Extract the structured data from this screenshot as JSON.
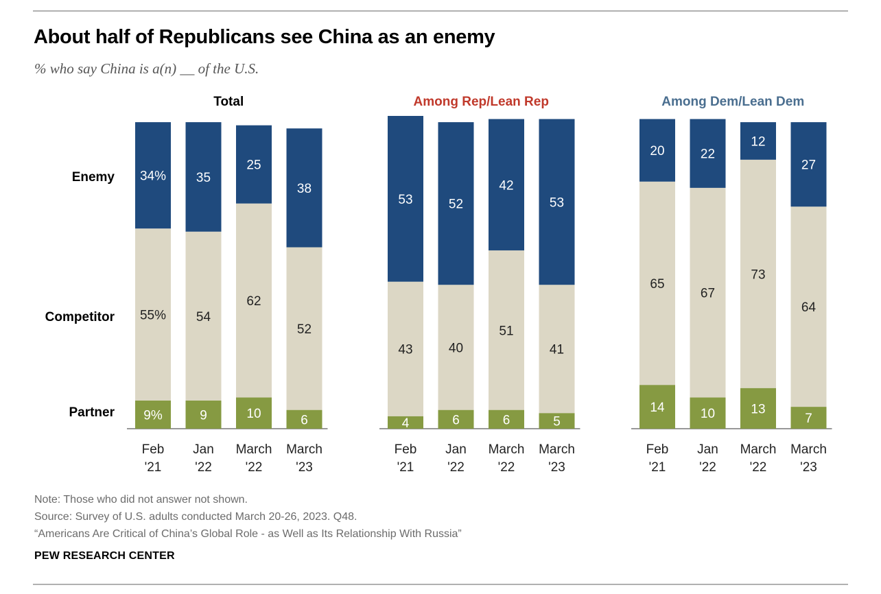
{
  "header": {
    "title": "About half of Republicans see China as an enemy",
    "subtitle": "% who say China is a(n) __ of the U.S."
  },
  "footer": {
    "note": "Note: Those who did not answer not shown.",
    "source": "Source: Survey of U.S. adults conducted March 20-26, 2023. Q48.",
    "report": "“Americans Are Critical of China’s Global Role - as Well as Its Relationship With Russia”",
    "brand": "PEW RESEARCH CENTER"
  },
  "colors": {
    "enemy": "#1f4a7d",
    "competitor": "#dcd7c5",
    "partner": "#869a42",
    "rep_heading": "#c0392b",
    "dem_heading": "#4a6e8f",
    "axis": "#777777"
  },
  "chart_data": {
    "type": "bar",
    "stacked": true,
    "row_labels": [
      "Enemy",
      "Competitor",
      "Partner"
    ],
    "categories": [
      [
        "Feb",
        "'21"
      ],
      [
        "Jan",
        "'22"
      ],
      [
        "March",
        "'22"
      ],
      [
        "March",
        "'23"
      ]
    ],
    "panels": [
      {
        "title": "Total",
        "series": [
          {
            "name": "Enemy",
            "values": [
              34,
              35,
              25,
              38
            ],
            "labels": [
              "34%",
              "35",
              "25",
              "38"
            ]
          },
          {
            "name": "Competitor",
            "values": [
              55,
              54,
              62,
              52
            ],
            "labels": [
              "55%",
              "54",
              "62",
              "52"
            ]
          },
          {
            "name": "Partner",
            "values": [
              9,
              9,
              10,
              6
            ],
            "labels": [
              "9%",
              "9",
              "10",
              "6"
            ]
          }
        ]
      },
      {
        "title": "Among Rep/Lean Rep",
        "series": [
          {
            "name": "Enemy",
            "values": [
              53,
              52,
              42,
              53
            ],
            "labels": [
              "53",
              "52",
              "42",
              "53"
            ]
          },
          {
            "name": "Competitor",
            "values": [
              43,
              40,
              51,
              41
            ],
            "labels": [
              "43",
              "40",
              "51",
              "41"
            ]
          },
          {
            "name": "Partner",
            "values": [
              4,
              6,
              6,
              5
            ],
            "labels": [
              "4",
              "6",
              "6",
              "5"
            ]
          }
        ]
      },
      {
        "title": "Among Dem/Lean Dem",
        "series": [
          {
            "name": "Enemy",
            "values": [
              20,
              22,
              12,
              27
            ],
            "labels": [
              "20",
              "22",
              "12",
              "27"
            ]
          },
          {
            "name": "Competitor",
            "values": [
              65,
              67,
              73,
              64
            ],
            "labels": [
              "65",
              "67",
              "73",
              "64"
            ]
          },
          {
            "name": "Partner",
            "values": [
              14,
              10,
              13,
              7
            ],
            "labels": [
              "14",
              "10",
              "13",
              "7"
            ]
          }
        ]
      }
    ]
  }
}
